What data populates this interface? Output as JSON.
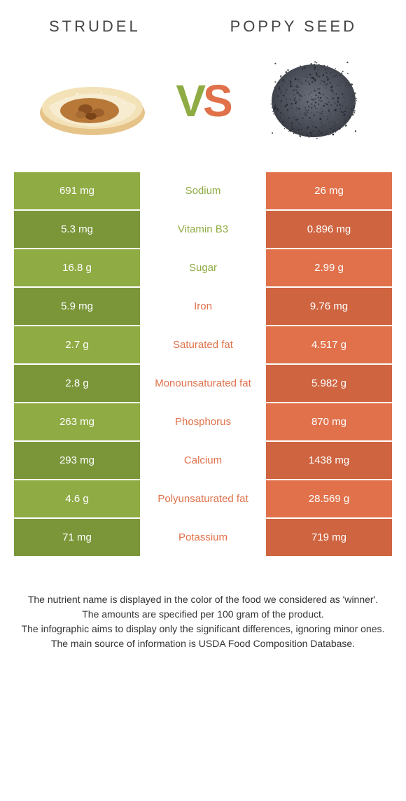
{
  "colors": {
    "green": "#8fab43",
    "orange": "#e0714a",
    "greenDark": "#7a9639",
    "orangeDark": "#cf6440",
    "midTextGreen": "#8fab43",
    "midTextOrange": "#e0714a"
  },
  "left": {
    "title": "STRUDEL"
  },
  "right": {
    "title": "POPPY SEED"
  },
  "vs": {
    "v": "V",
    "s": "S"
  },
  "rows": [
    {
      "l": "691 mg",
      "m": "Sodium",
      "r": "26 mg",
      "winner": "left"
    },
    {
      "l": "5.3 mg",
      "m": "Vitamin B3",
      "r": "0.896 mg",
      "winner": "left"
    },
    {
      "l": "16.8 g",
      "m": "Sugar",
      "r": "2.99 g",
      "winner": "left"
    },
    {
      "l": "5.9 mg",
      "m": "Iron",
      "r": "9.76 mg",
      "winner": "right"
    },
    {
      "l": "2.7 g",
      "m": "Saturated fat",
      "r": "4.517 g",
      "winner": "right"
    },
    {
      "l": "2.8 g",
      "m": "Monounsaturated fat",
      "r": "5.982 g",
      "winner": "right"
    },
    {
      "l": "263 mg",
      "m": "Phosphorus",
      "r": "870 mg",
      "winner": "right"
    },
    {
      "l": "293 mg",
      "m": "Calcium",
      "r": "1438 mg",
      "winner": "right"
    },
    {
      "l": "4.6 g",
      "m": "Polyunsaturated fat",
      "r": "28.569 g",
      "winner": "right"
    },
    {
      "l": "71 mg",
      "m": "Potassium",
      "r": "719 mg",
      "winner": "right"
    }
  ],
  "footer": {
    "l1": "The nutrient name is displayed in the color of the food we considered as 'winner'.",
    "l2": "The amounts are specified per 100 gram of the product.",
    "l3": "The infographic aims to display only the significant differences, ignoring minor ones.",
    "l4": "The main source of information is USDA Food Composition Database."
  }
}
